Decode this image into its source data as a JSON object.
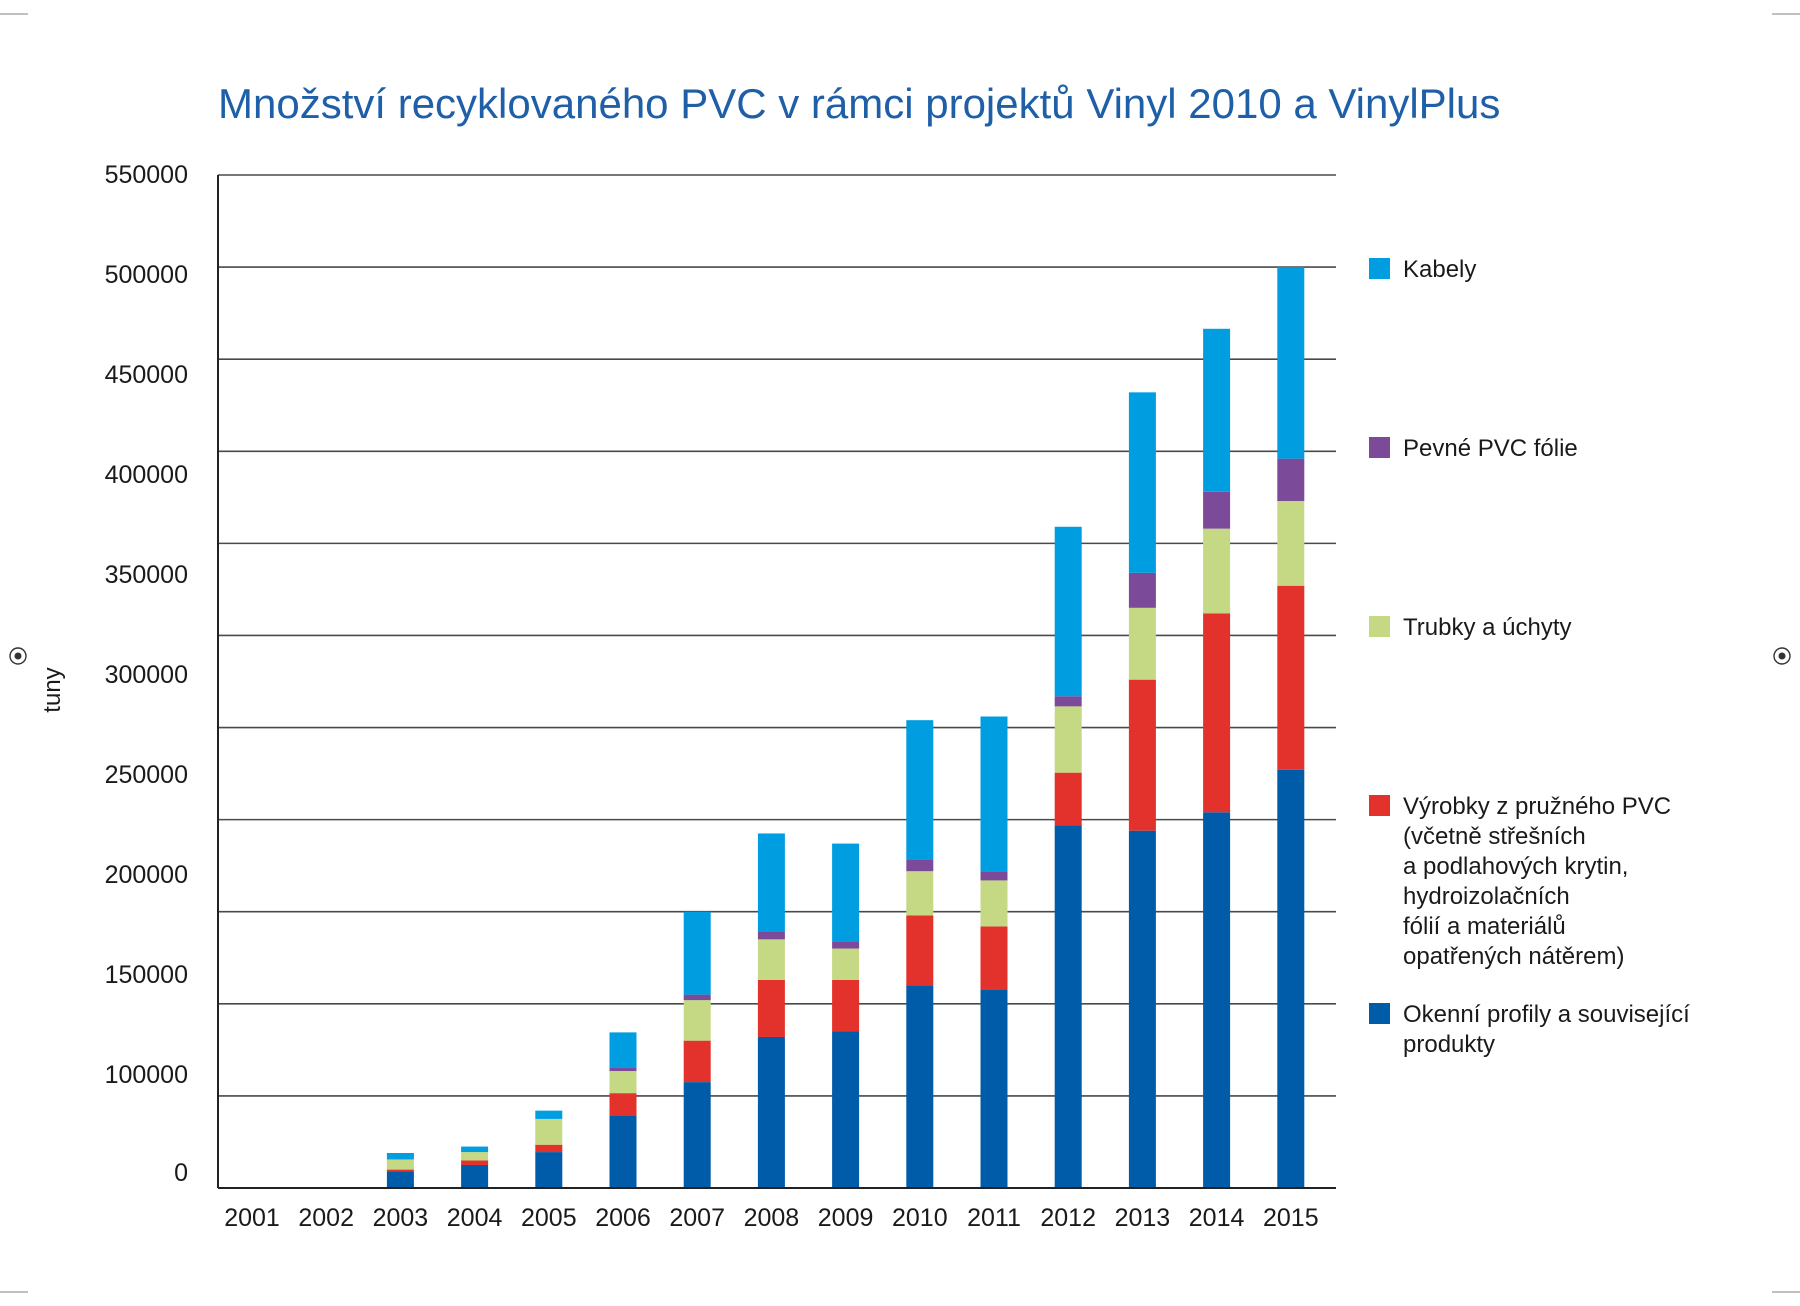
{
  "chart_data": {
    "type": "bar",
    "stacked": true,
    "title": "Množství recyklovaného PVC v rámci projektů Vinyl 2010 a VinylPlus",
    "xlabel": "",
    "ylabel": "tuny",
    "ylim": [
      0,
      550000
    ],
    "yticks": [
      0,
      100000,
      150000,
      200000,
      250000,
      300000,
      350000,
      400000,
      450000,
      500000,
      550000
    ],
    "ytick_labels": [
      "0",
      "100000",
      "150000",
      "200000",
      "250000",
      "300000",
      "350000",
      "400000",
      "450000",
      "500000",
      "550000"
    ],
    "grid": true,
    "legend_position": "right",
    "categories": [
      "2001",
      "2002",
      "2003",
      "2004",
      "2005",
      "2006",
      "2007",
      "2008",
      "2009",
      "2010",
      "2011",
      "2012",
      "2013",
      "2014",
      "2015"
    ],
    "series": [
      {
        "name": "Okenní profily a související produkty",
        "color": "#005ca9",
        "values": [
          0,
          0,
          9000,
          12500,
          19500,
          39500,
          57500,
          82000,
          85000,
          110000,
          107500,
          197000,
          194000,
          204000,
          227000
        ]
      },
      {
        "name": "Výrobky z pružného PVC (včetně střešních a podlahových krytin, hydroizolačních fólií a materiálů opatřených nátěrem)",
        "color": "#e3312b",
        "values": [
          0,
          0,
          1000,
          2500,
          4000,
          12000,
          22500,
          31000,
          28000,
          38000,
          34500,
          28500,
          82000,
          108000,
          100000
        ]
      },
      {
        "name": "Trubky a úchyty",
        "color": "#c5d984",
        "values": [
          0,
          0,
          5500,
          4500,
          14000,
          12000,
          22000,
          22000,
          17000,
          24000,
          25000,
          36000,
          39000,
          46000,
          46000
        ]
      },
      {
        "name": "Pevné PVC fólie",
        "color": "#7b4b9a",
        "values": [
          0,
          0,
          0,
          0,
          0,
          2000,
          3000,
          4000,
          4000,
          6500,
          5000,
          5500,
          19000,
          20000,
          23000
        ]
      },
      {
        "name": "Kabely",
        "color": "#009ee0",
        "values": [
          0,
          0,
          3500,
          3000,
          4500,
          19000,
          45000,
          53500,
          53000,
          75500,
          84000,
          92000,
          98000,
          88500,
          104000
        ]
      }
    ],
    "legend": [
      {
        "lines": [
          "Kabely"
        ],
        "color": "#009ee0"
      },
      {
        "lines": [
          "Pevné PVC fólie"
        ],
        "color": "#7b4b9a"
      },
      {
        "lines": [
          "Trubky a úchyty"
        ],
        "color": "#c5d984"
      },
      {
        "lines": [
          "Výrobky z pružného PVC",
          "(včetně střešních",
          "a podlahových krytin,",
          "hydroizolačních",
          "fólií a materiálů",
          "opatřených nátěrem)"
        ],
        "color": "#e3312b"
      },
      {
        "lines": [
          "Okenní profily a související",
          "produkty"
        ],
        "color": "#005ca9"
      }
    ]
  }
}
